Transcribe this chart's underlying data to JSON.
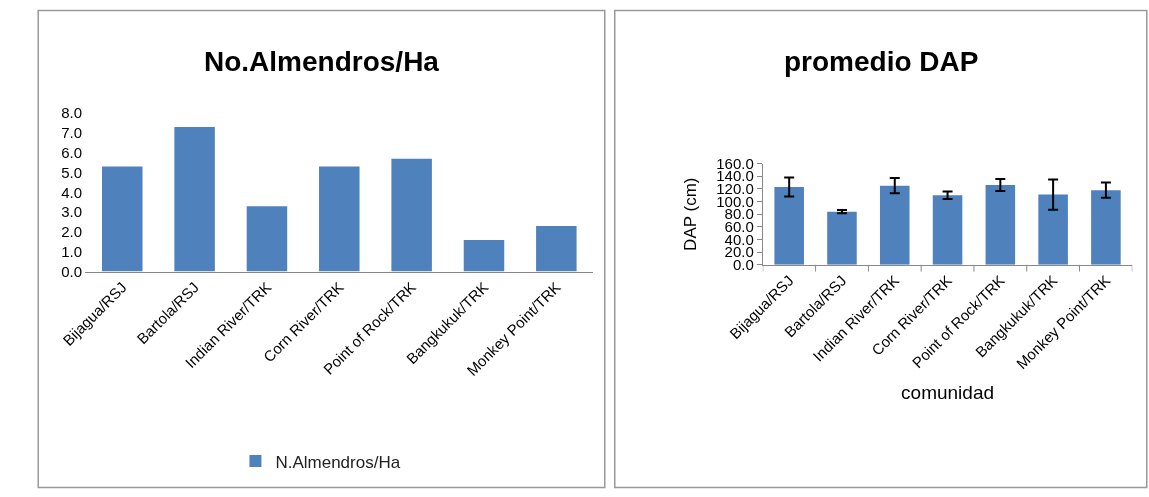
{
  "chart_data": [
    {
      "type": "bar",
      "title": "No.Almendros/Ha",
      "categories": [
        "Bijagua/RSJ",
        "Bartola/RSJ",
        "Indian River/TRK",
        "Corn River/TRK",
        "Point of Rock/TRK",
        "Bangkukuk/TRK",
        "Monkey Point/TRK"
      ],
      "series": [
        {
          "name": "N.Almendros/Ha",
          "color": "#4f81bd",
          "values": [
            5.3,
            7.3,
            3.3,
            5.3,
            5.7,
            1.6,
            2.3
          ]
        }
      ],
      "ylim": [
        0,
        8
      ],
      "yticks": [
        {
          "value": 0,
          "label": "0.0"
        },
        {
          "value": 1,
          "label": "1.0"
        },
        {
          "value": 2,
          "label": "2.0"
        },
        {
          "value": 3,
          "label": "3.0"
        },
        {
          "value": 4,
          "label": "4.0"
        },
        {
          "value": 5,
          "label": "5.0"
        },
        {
          "value": 6,
          "label": "6.0"
        },
        {
          "value": 7,
          "label": "7.0"
        },
        {
          "value": 8,
          "label": "8.0"
        }
      ],
      "legend": "bottom"
    },
    {
      "type": "bar",
      "title": "promedio DAP",
      "xlabel": "comunidad",
      "ylabel": "DAP (cm)",
      "categories": [
        "Bijagua/RSJ",
        "Bartola/RSJ",
        "Indian River/TRK",
        "Corn River/TRK",
        "Point of Rock/TRK",
        "Bangkukuk/TRK",
        "Monkey Point/TRK"
      ],
      "series": [
        {
          "color": "#4f81bd",
          "values": [
            123,
            84,
            125,
            110,
            126,
            111,
            118
          ],
          "errors": [
            15,
            2.5,
            12,
            6,
            9.5,
            24,
            12
          ]
        }
      ],
      "ylim": [
        0,
        160
      ],
      "yticks": [
        {
          "value": 0,
          "label": "0.0"
        },
        {
          "value": 20,
          "label": "20.0"
        },
        {
          "value": 40,
          "label": "40.0"
        },
        {
          "value": 60,
          "label": "60.0"
        },
        {
          "value": 80,
          "label": "80.0"
        },
        {
          "value": 100,
          "label": "100.0"
        },
        {
          "value": 120,
          "label": "120.0"
        },
        {
          "value": 140,
          "label": "140.0"
        },
        {
          "value": 160,
          "label": "160.0"
        }
      ]
    }
  ]
}
